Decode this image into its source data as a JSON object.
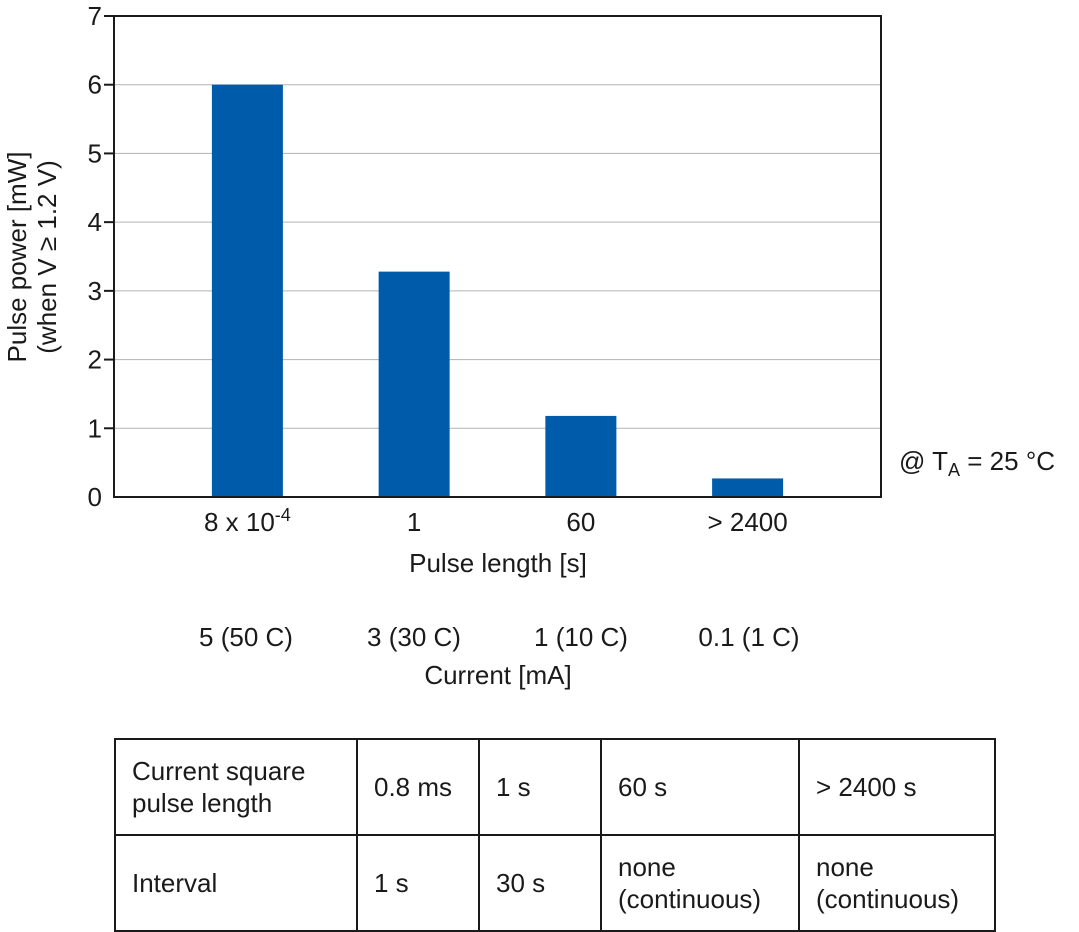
{
  "chart_data": {
    "type": "bar",
    "categories": [
      "8 x 10",
      "1",
      "60",
      "> 2400"
    ],
    "category_superscripts": [
      "-4",
      "",
      "",
      ""
    ],
    "values": [
      6.0,
      3.28,
      1.18,
      0.27
    ],
    "xlabel": "Pulse length [s]",
    "ylabel_line1": "Pulse power [mW]",
    "ylabel_line2": "(when V ≥ 1.2 V)",
    "ylim": [
      0,
      7
    ],
    "yticks": [
      "0",
      "1",
      "2",
      "3",
      "4",
      "5",
      "6",
      "7"
    ],
    "grid": true,
    "bar_color": "#005BAA",
    "secondary_axis": {
      "labels": [
        "5 (50 C)",
        "3 (30 C)",
        "1 (10 C)",
        "0.1 (1 C)"
      ],
      "title": "Current [mA]"
    },
    "annotation": {
      "prefix": "@ T",
      "subscript": "A",
      "suffix": " = 25 °C"
    }
  },
  "table": {
    "rows": [
      {
        "label": "Current square pulse length",
        "cells": [
          "0.8 ms",
          "1 s",
          "60 s",
          "> 2400 s"
        ]
      },
      {
        "label": "Interval",
        "cells": [
          "1 s",
          "30 s",
          "none (continuous)",
          "none (continuous)"
        ]
      }
    ]
  }
}
